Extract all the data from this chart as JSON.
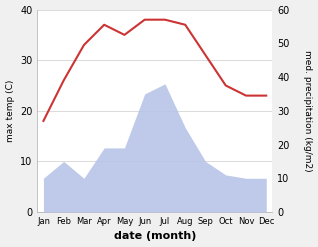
{
  "months": [
    "Jan",
    "Feb",
    "Mar",
    "Apr",
    "May",
    "Jun",
    "Jul",
    "Aug",
    "Sep",
    "Oct",
    "Nov",
    "Dec"
  ],
  "max_temp": [
    18,
    26,
    33,
    37,
    35,
    38,
    38,
    37,
    31,
    25,
    23,
    23
  ],
  "precipitation": [
    10,
    15,
    10,
    19,
    19,
    35,
    38,
    25,
    15,
    11,
    10,
    10
  ],
  "temp_color": "#cc3333",
  "precip_fill_color": "#b8c4e8",
  "temp_ylim": [
    0,
    40
  ],
  "precip_ylim": [
    0,
    60
  ],
  "xlabel": "date (month)",
  "ylabel_left": "max temp (C)",
  "ylabel_right": "med. precipitation (kg/m2)",
  "bg_color": "#f0f0f0",
  "plot_bg_color": "#ffffff"
}
